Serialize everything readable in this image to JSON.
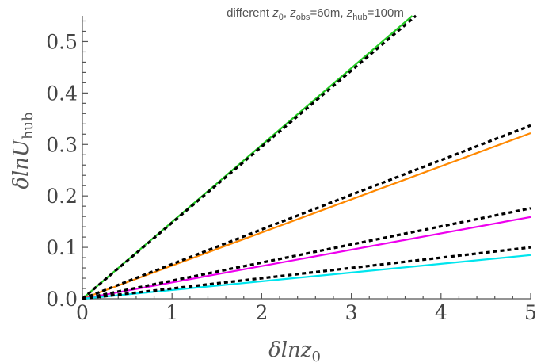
{
  "chart_data": {
    "type": "line",
    "title": "different z₀, z_obs=60m, z_hub=100m",
    "title_parts": {
      "prefix": "different ",
      "z0_var": "z",
      "z0_sub": "0",
      "obs_var": "z",
      "obs_sub": "obs",
      "obs_val": "=60m, ",
      "hub_var": "z",
      "hub_sub": "hub",
      "hub_val": "=100m",
      "sep": ", "
    },
    "xlabel": "δlnz₀",
    "xlabel_parts": {
      "main": "δlnz",
      "sub": "0"
    },
    "ylabel": "δlnU_hub",
    "ylabel_parts": {
      "main": "δlnU",
      "sub": "hub"
    },
    "xlim": [
      0,
      5
    ],
    "ylim": [
      0,
      0.55
    ],
    "xticks": [
      0,
      1,
      2,
      3,
      4,
      5
    ],
    "xtick_labels": [
      "0",
      "1",
      "2",
      "3",
      "4",
      "5"
    ],
    "yticks": [
      0.0,
      0.1,
      0.2,
      0.3,
      0.4,
      0.5
    ],
    "ytick_labels": [
      "0.0",
      "0.1",
      "0.2",
      "0.3",
      "0.4",
      "0.5"
    ],
    "grid": false,
    "series": [
      {
        "style": "solid",
        "color": "#22cc22",
        "x": [
          0,
          3.68
        ],
        "y": [
          0,
          0.55
        ]
      },
      {
        "style": "dashed",
        "color": "#000000",
        "x": [
          0,
          3.72
        ],
        "y": [
          0,
          0.55
        ]
      },
      {
        "style": "solid",
        "color": "#ff8800",
        "x": [
          0,
          5
        ],
        "y": [
          0,
          0.322
        ]
      },
      {
        "style": "dashed",
        "color": "#000000",
        "x": [
          0,
          5
        ],
        "y": [
          0,
          0.337
        ]
      },
      {
        "style": "solid",
        "color": "#ee00ee",
        "x": [
          0,
          5
        ],
        "y": [
          0,
          0.159
        ]
      },
      {
        "style": "dashed",
        "color": "#000000",
        "x": [
          0,
          5
        ],
        "y": [
          0,
          0.176
        ]
      },
      {
        "style": "solid",
        "color": "#00e5ee",
        "x": [
          0,
          5
        ],
        "y": [
          0,
          0.085
        ]
      },
      {
        "style": "dashed",
        "color": "#000000",
        "x": [
          0,
          5
        ],
        "y": [
          0,
          0.1
        ]
      }
    ]
  }
}
